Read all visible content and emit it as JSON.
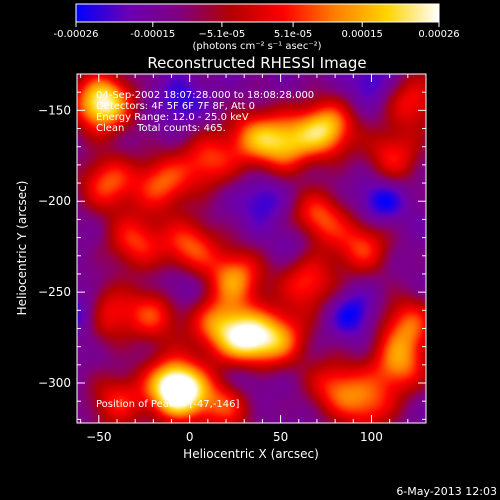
{
  "chart_data": {
    "type": "heatmap",
    "title": "Reconstructed RHESSI Image",
    "xlabel": "Heliocentric X (arcsec)",
    "ylabel": "Heliocentric Y (arcsec)",
    "xlim": [
      -62,
      130
    ],
    "ylim": [
      -322,
      -130
    ],
    "x_ticks": [
      -50,
      0,
      50,
      100
    ],
    "y_ticks": [
      -300,
      -250,
      -200,
      -150
    ],
    "colorbar": {
      "range": [
        -0.00026,
        0.00026
      ],
      "tick_values": [
        -0.00026,
        -0.00015,
        -5.1e-05,
        5.1e-05,
        0.00015,
        0.00026
      ],
      "tick_labels": [
        "-0.00026",
        "-0.00015",
        "−5.1e-05",
        "5.1e-05",
        "0.00015",
        "0.00026"
      ],
      "units_label": "(photons cm⁻² s⁻¹ asec⁻²)",
      "colormap": [
        "#0000ff",
        "#6a00b4",
        "#800080",
        "#b40000",
        "#ff0000",
        "#ff7f00",
        "#ffd400",
        "#ffffff"
      ]
    },
    "annotations": {
      "time_range": "04-Sep-2002 18:07:28.000 to 18:08:28.000",
      "detectors": "Detectors: 4F 5F 6F 7F 8F, Att 0",
      "energy": "Energy Range: 12.0 - 25.0 keV",
      "method": "Clean    Total counts: 465.",
      "peak": "Position of Peak = [-47,-146]"
    },
    "sources": [
      {
        "x": -48,
        "y": -146,
        "intensity": 1.0
      },
      {
        "x": 75,
        "y": -160,
        "intensity": 0.8
      },
      {
        "x": 53,
        "y": -168,
        "intensity": 0.65
      },
      {
        "x": 35,
        "y": -165,
        "intensity": 0.55
      },
      {
        "x": 10,
        "y": -178,
        "intensity": 0.5
      },
      {
        "x": -15,
        "y": -190,
        "intensity": 0.55
      },
      {
        "x": -45,
        "y": -190,
        "intensity": 0.55
      },
      {
        "x": 112,
        "y": -175,
        "intensity": 0.45
      },
      {
        "x": 70,
        "y": -210,
        "intensity": 0.6
      },
      {
        "x": 0,
        "y": -225,
        "intensity": 0.55
      },
      {
        "x": -30,
        "y": -222,
        "intensity": 0.5
      },
      {
        "x": 25,
        "y": -242,
        "intensity": 0.65
      },
      {
        "x": 95,
        "y": -225,
        "intensity": 0.5
      },
      {
        "x": 65,
        "y": -245,
        "intensity": 0.5
      },
      {
        "x": -48,
        "y": -262,
        "intensity": 0.55
      },
      {
        "x": -20,
        "y": -262,
        "intensity": 0.5
      },
      {
        "x": 15,
        "y": -268,
        "intensity": 0.55
      },
      {
        "x": 32,
        "y": -276,
        "intensity": 0.85
      },
      {
        "x": 50,
        "y": -275,
        "intensity": 0.55
      },
      {
        "x": 120,
        "y": -268,
        "intensity": 0.55
      },
      {
        "x": 115,
        "y": -290,
        "intensity": 0.6
      },
      {
        "x": -10,
        "y": -300,
        "intensity": 0.5
      },
      {
        "x": -5,
        "y": -305,
        "intensity": 0.85
      },
      {
        "x": 20,
        "y": -312,
        "intensity": 0.5
      },
      {
        "x": 80,
        "y": -302,
        "intensity": 0.5
      },
      {
        "x": 98,
        "y": -312,
        "intensity": 0.5
      },
      {
        "x": -40,
        "y": -310,
        "intensity": 0.45
      },
      {
        "x": 123,
        "y": -145,
        "intensity": 0.45
      }
    ],
    "negative_sources": [
      {
        "x": -58,
        "y": -262,
        "intensity": 1.0
      },
      {
        "x": 105,
        "y": -200,
        "intensity": 0.7
      },
      {
        "x": 90,
        "y": -262,
        "intensity": 0.65
      },
      {
        "x": 60,
        "y": -220,
        "intensity": 0.5
      },
      {
        "x": 40,
        "y": -200,
        "intensity": 0.5
      },
      {
        "x": -5,
        "y": -248,
        "intensity": 0.5
      },
      {
        "x": 100,
        "y": -135,
        "intensity": 0.5
      },
      {
        "x": -5,
        "y": -145,
        "intensity": 0.5
      },
      {
        "x": 30,
        "y": -298,
        "intensity": 0.5
      }
    ]
  },
  "footer_date": "6-May-2013 12:03"
}
